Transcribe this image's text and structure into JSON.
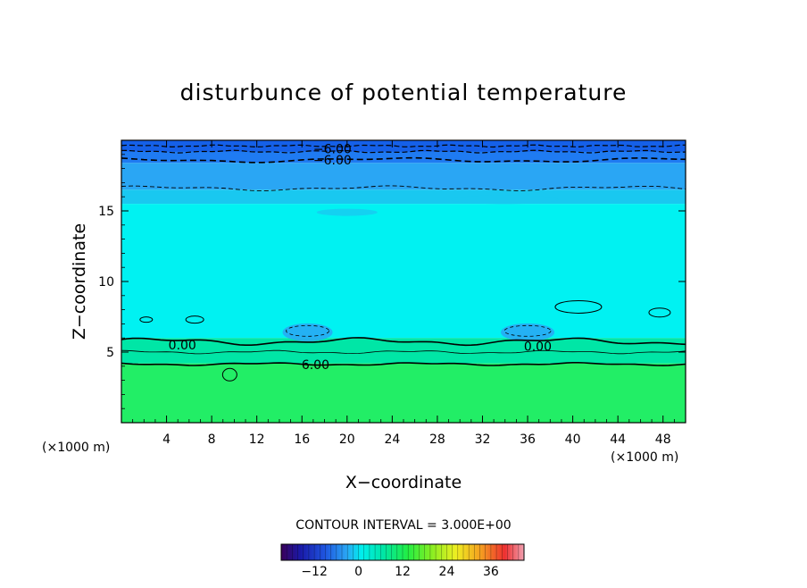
{
  "chart_data": {
    "type": "heatmap",
    "title": "disturbunce of potential temperature",
    "xlabel": "X−coordinate",
    "ylabel": "Z−coordinate",
    "x_unit": "(×1000 m)",
    "x_unit_right": "(×1000 m)",
    "xlim": [
      0,
      50
    ],
    "ylim": [
      0,
      20
    ],
    "xticks": [
      4,
      8,
      12,
      16,
      20,
      24,
      28,
      32,
      36,
      40,
      44,
      48
    ],
    "xtick_labels": [
      "4",
      "8",
      "12",
      "16",
      "20",
      "24",
      "28",
      "32",
      "36",
      "40",
      "44",
      "48"
    ],
    "yticks": [
      5,
      10,
      15
    ],
    "ytick_labels": [
      "5",
      "10",
      "15"
    ],
    "contour_interval_text": "CONTOUR INTERVAL = 3.000E+00",
    "contour_labels": [
      {
        "text": "−6.00",
        "x": 18.7,
        "z": 19.4
      },
      {
        "text": "−6.00",
        "x": 18.7,
        "z": 18.6
      },
      {
        "text": "0.00",
        "x": 5.4,
        "z": 5.5
      },
      {
        "text": "0.00",
        "x": 36.9,
        "z": 5.4
      },
      {
        "text": "6.00",
        "x": 17.2,
        "z": 4.1
      }
    ],
    "layers": [
      {
        "name": "deep-negative-top",
        "z_range": [
          18.4,
          20
        ],
        "color": "#1f7bf2"
      },
      {
        "name": "negative-upper",
        "z_range": [
          16.5,
          18.4
        ],
        "color": "#2aa6f4"
      },
      {
        "name": "near-zero-upper",
        "z_range": [
          15.5,
          16.5
        ],
        "color": "#19c8f0"
      },
      {
        "name": "near-zero-mid",
        "z_range": [
          6.0,
          15.5
        ],
        "color": "#00f2f2"
      },
      {
        "name": "transition",
        "z_range": [
          4.2,
          6.0
        ],
        "color": "#00e6a6"
      },
      {
        "name": "positive-lower",
        "z_range": [
          0,
          4.2
        ],
        "color": "#22ee66"
      }
    ],
    "colorbar": {
      "ticks": [
        -12,
        0,
        12,
        24,
        36
      ],
      "tick_labels": [
        "−12",
        "0",
        "12",
        "24",
        "36"
      ],
      "range": [
        -21,
        45
      ]
    }
  }
}
